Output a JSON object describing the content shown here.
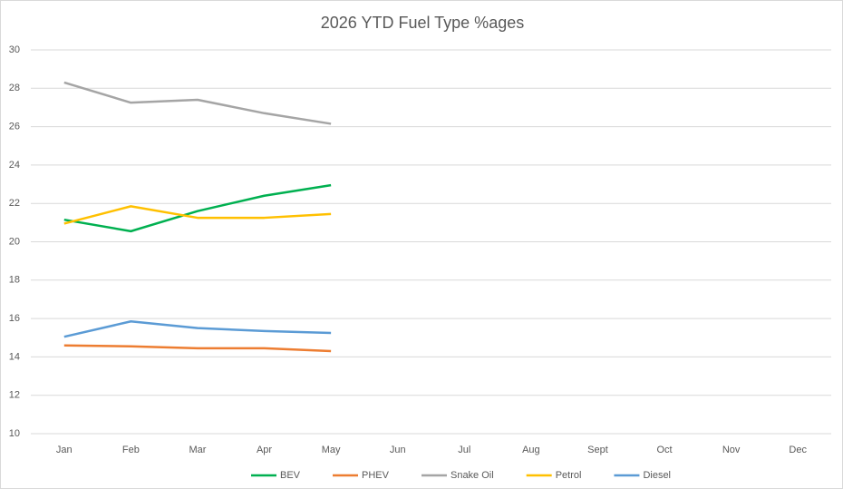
{
  "chart_data": {
    "type": "line",
    "title": "2026 YTD Fuel Type %ages",
    "categories": [
      "Jan",
      "Feb",
      "Mar",
      "Apr",
      "May",
      "Jun",
      "Jul",
      "Aug",
      "Sept",
      "Oct",
      "Nov",
      "Dec"
    ],
    "series": [
      {
        "name": "BEV",
        "color": "#00b050",
        "values": [
          21.15,
          20.55,
          21.6,
          22.4,
          22.95,
          null,
          null,
          null,
          null,
          null,
          null,
          null
        ]
      },
      {
        "name": "PHEV",
        "color": "#ed7d31",
        "values": [
          14.6,
          14.55,
          14.45,
          14.45,
          14.3,
          null,
          null,
          null,
          null,
          null,
          null,
          null
        ]
      },
      {
        "name": "Snake Oil",
        "color": "#a5a5a5",
        "values": [
          28.3,
          27.25,
          27.4,
          26.7,
          26.15,
          null,
          null,
          null,
          null,
          null,
          null,
          null
        ]
      },
      {
        "name": "Petrol",
        "color": "#ffc000",
        "values": [
          20.95,
          21.85,
          21.25,
          21.25,
          21.45,
          null,
          null,
          null,
          null,
          null,
          null,
          null
        ]
      },
      {
        "name": "Diesel",
        "color": "#5b9bd5",
        "values": [
          15.05,
          15.85,
          15.5,
          15.35,
          15.25,
          null,
          null,
          null,
          null,
          null,
          null,
          null
        ]
      }
    ],
    "ylim": [
      10,
      30
    ],
    "yticks": [
      10,
      12,
      14,
      16,
      18,
      20,
      22,
      24,
      26,
      28,
      30
    ],
    "grid": true,
    "legend": "bottom"
  }
}
